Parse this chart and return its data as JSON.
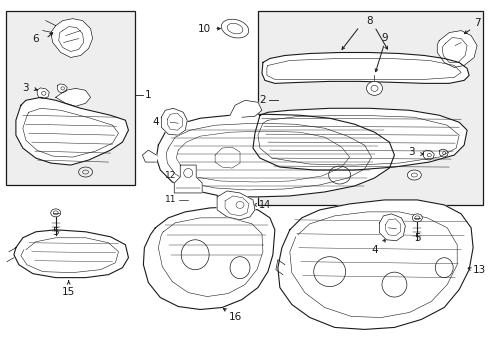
{
  "bg_color": "#ffffff",
  "line_color": "#1a1a1a",
  "box_bg": "#eeeeee",
  "fig_width": 4.89,
  "fig_height": 3.6,
  "dpi": 100
}
